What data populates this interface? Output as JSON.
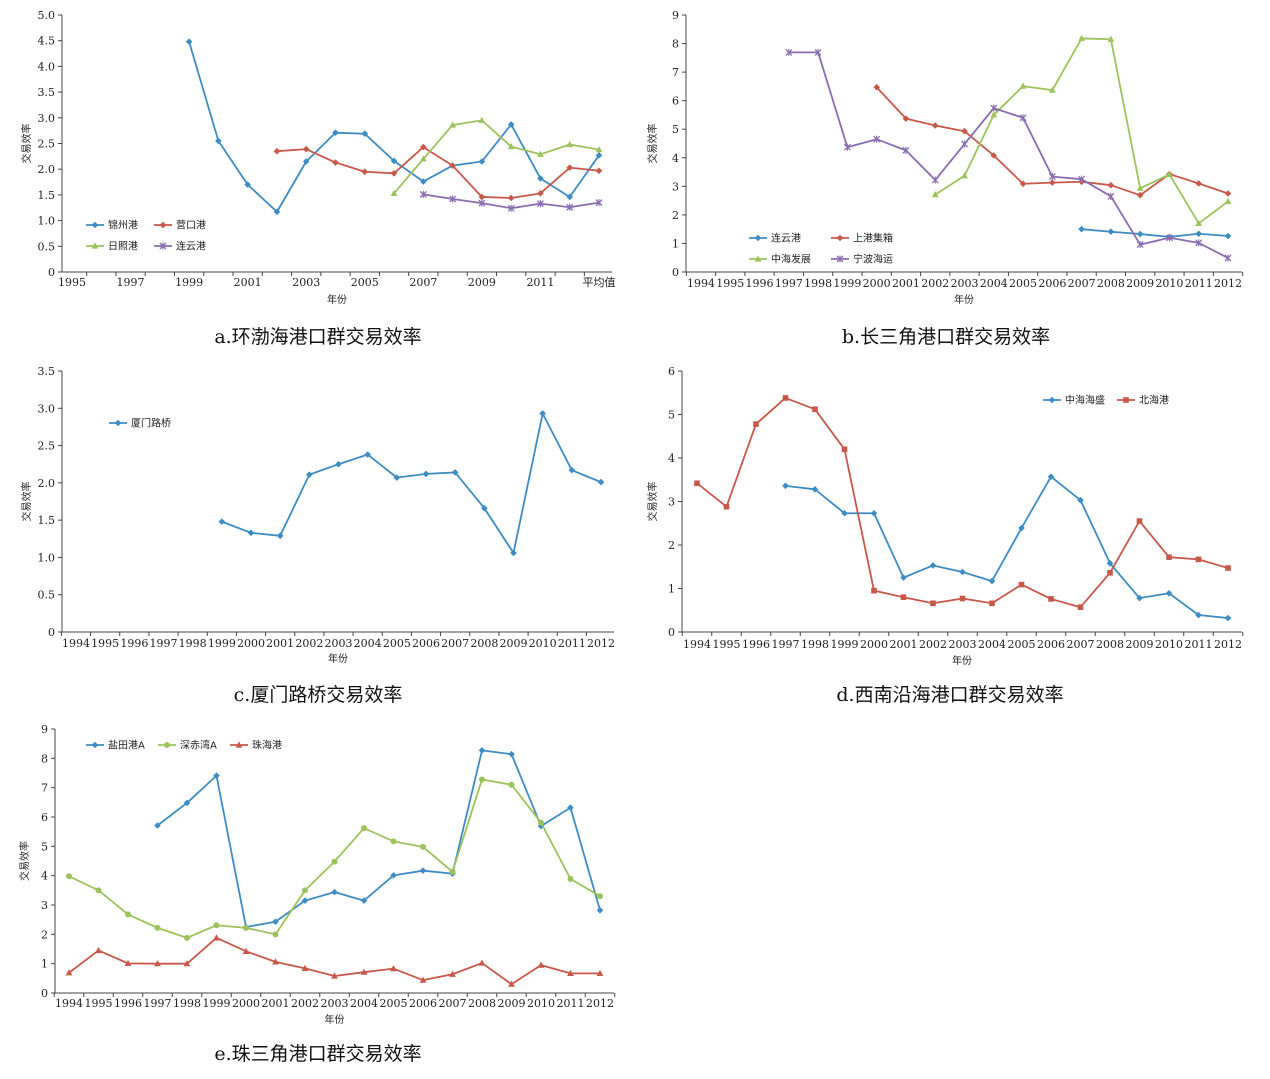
{
  "chart_data": [
    {
      "id": "a",
      "type": "line",
      "caption": "a.环渤海港口群交易效率",
      "xlabel": "年份",
      "ylabel": "交易效率",
      "ylim": [
        0,
        5
      ],
      "yticks": [
        "0",
        "0.5",
        "1.0",
        "1.5",
        "2.0",
        "2.5",
        "3.0",
        "3.5",
        "4.0",
        "4.5",
        "5.0"
      ],
      "categories": [
        "1995",
        "1996",
        "1997",
        "1998",
        "1999",
        "2000",
        "2001",
        "2002",
        "2003",
        "2004",
        "2005",
        "2006",
        "2007",
        "2008",
        "2009",
        "2010",
        "2011",
        "2012",
        "平均值"
      ],
      "xtick_labels": [
        "1995",
        "",
        "1997",
        "",
        "1999",
        "",
        "2001",
        "",
        "2003",
        "",
        "2005",
        "",
        "2007",
        "",
        "2009",
        "",
        "2011",
        "",
        "平均值"
      ],
      "legend": {
        "position": "bottom-left",
        "columns": 2
      },
      "series": [
        {
          "name": "锦州港",
          "color": "#3d8cc4",
          "marker": "diamond",
          "values": [
            null,
            null,
            null,
            null,
            4.48,
            2.55,
            1.7,
            1.17,
            2.15,
            2.71,
            2.69,
            2.16,
            1.76,
            2.07,
            2.15,
            2.87,
            1.82,
            1.46,
            2.27
          ]
        },
        {
          "name": "营口港",
          "color": "#c8584a",
          "marker": "diamond",
          "values": [
            null,
            null,
            null,
            null,
            null,
            null,
            null,
            2.35,
            2.39,
            2.13,
            1.95,
            1.92,
            2.43,
            2.07,
            1.46,
            1.44,
            1.53,
            2.03,
            1.97
          ]
        },
        {
          "name": "日照港",
          "color": "#9ec35c",
          "marker": "triangle",
          "values": [
            null,
            null,
            null,
            null,
            null,
            null,
            null,
            null,
            null,
            null,
            null,
            1.53,
            2.2,
            2.86,
            2.95,
            2.44,
            2.29,
            2.48,
            2.38
          ]
        },
        {
          "name": "连云港",
          "color": "#8a6db0",
          "marker": "x",
          "values": [
            null,
            null,
            null,
            null,
            null,
            null,
            null,
            null,
            null,
            null,
            null,
            null,
            1.51,
            1.42,
            1.34,
            1.24,
            1.33,
            1.26,
            1.35
          ]
        }
      ]
    },
    {
      "id": "b",
      "type": "line",
      "caption": "b.长三角港口群交易效率",
      "xlabel": "年份",
      "ylabel": "交易效率",
      "ylim": [
        0,
        9
      ],
      "yticks": [
        "0",
        "1",
        "2",
        "3",
        "4",
        "5",
        "6",
        "7",
        "8",
        "9"
      ],
      "categories": [
        "1994",
        "1995",
        "1996",
        "1997",
        "1998",
        "1999",
        "2000",
        "2001",
        "2002",
        "2003",
        "2004",
        "2005",
        "2006",
        "2007",
        "2008",
        "2009",
        "2010",
        "2011",
        "2012"
      ],
      "xtick_labels": [
        "1994",
        "1995",
        "1996",
        "1997",
        "1998",
        "1999",
        "2000",
        "2001",
        "2002",
        "2003",
        "2004",
        "2005",
        "2006",
        "2007",
        "2008",
        "2009",
        "2010",
        "2011",
        "2012"
      ],
      "legend": {
        "position": "bottom-left",
        "columns": 2
      },
      "series": [
        {
          "name": "连云港",
          "color": "#3d8cc4",
          "marker": "diamond",
          "values": [
            null,
            null,
            null,
            null,
            null,
            null,
            null,
            null,
            null,
            null,
            null,
            null,
            null,
            1.5,
            1.41,
            1.33,
            1.23,
            1.34,
            1.26
          ]
        },
        {
          "name": "上港集箱",
          "color": "#c8584a",
          "marker": "diamond",
          "values": [
            null,
            null,
            null,
            null,
            null,
            null,
            6.47,
            5.37,
            5.13,
            4.93,
            4.08,
            3.09,
            3.13,
            3.16,
            3.04,
            2.69,
            3.43,
            3.1,
            2.75
          ]
        },
        {
          "name": "中海发展",
          "color": "#9ec35c",
          "marker": "triangle",
          "values": [
            null,
            null,
            null,
            null,
            null,
            null,
            null,
            null,
            2.71,
            3.37,
            5.5,
            6.51,
            6.37,
            8.18,
            8.15,
            2.93,
            3.42,
            1.7,
            2.47
          ]
        },
        {
          "name": "宁波海运",
          "color": "#8a6db0",
          "marker": "x",
          "values": [
            null,
            null,
            null,
            7.69,
            7.69,
            4.37,
            4.65,
            4.26,
            3.22,
            4.48,
            5.74,
            5.4,
            3.34,
            3.25,
            2.65,
            0.96,
            1.2,
            1.02,
            0.49
          ]
        }
      ]
    },
    {
      "id": "c",
      "type": "line",
      "caption": "c.厦门路桥交易效率",
      "xlabel": "年份",
      "ylabel": "交易效率",
      "ylim": [
        0,
        3.5
      ],
      "yticks": [
        "0",
        "0.5",
        "1.0",
        "1.5",
        "2.0",
        "2.5",
        "3.0",
        "3.5"
      ],
      "categories": [
        "1994",
        "1995",
        "1996",
        "1997",
        "1998",
        "1999",
        "2000",
        "2001",
        "2002",
        "2003",
        "2004",
        "2005",
        "2006",
        "2007",
        "2008",
        "2009",
        "2010",
        "2011",
        "2012"
      ],
      "xtick_labels": [
        "1994",
        "1995",
        "1996",
        "1997",
        "1998",
        "1999",
        "2000",
        "2001",
        "2002",
        "2003",
        "2004",
        "2005",
        "2006",
        "2007",
        "2008",
        "2009",
        "2010",
        "2011",
        "2012"
      ],
      "legend": {
        "position": "top-left",
        "columns": 1
      },
      "series": [
        {
          "name": "厦门路桥",
          "color": "#3d8cc4",
          "marker": "diamond",
          "values": [
            null,
            null,
            null,
            null,
            null,
            1.48,
            1.33,
            1.29,
            2.11,
            2.25,
            2.38,
            2.07,
            2.12,
            2.14,
            1.66,
            1.06,
            2.93,
            2.17,
            2.01
          ]
        }
      ]
    },
    {
      "id": "d",
      "type": "line",
      "caption": "d.西南沿海港口群交易效率",
      "xlabel": "年份",
      "ylabel": "交易效率",
      "ylim": [
        0,
        6
      ],
      "yticks": [
        "0",
        "1",
        "2",
        "3",
        "4",
        "5",
        "6"
      ],
      "categories": [
        "1994",
        "1995",
        "1996",
        "1997",
        "1998",
        "1999",
        "2000",
        "2001",
        "2002",
        "2003",
        "2004",
        "2005",
        "2006",
        "2007",
        "2008",
        "2009",
        "2010",
        "2011",
        "2012"
      ],
      "xtick_labels": [
        "1994",
        "1995",
        "1996",
        "1997",
        "1998",
        "1999",
        "2000",
        "2001",
        "2002",
        "2003",
        "2004",
        "2005",
        "2006",
        "2007",
        "2008",
        "2009",
        "2010",
        "2011",
        "2012"
      ],
      "legend": {
        "position": "top-right",
        "columns": 2
      },
      "series": [
        {
          "name": "中海海盛",
          "color": "#3d8cc4",
          "marker": "diamond",
          "values": [
            null,
            null,
            null,
            3.36,
            3.28,
            2.73,
            2.73,
            1.25,
            1.53,
            1.38,
            1.17,
            2.39,
            3.57,
            3.03,
            1.58,
            0.78,
            0.89,
            0.39,
            0.32
          ]
        },
        {
          "name": "北海港",
          "color": "#c8584a",
          "marker": "square",
          "values": [
            3.42,
            2.88,
            4.78,
            5.38,
            5.12,
            4.2,
            0.95,
            0.8,
            0.66,
            0.77,
            0.66,
            1.09,
            0.76,
            0.57,
            1.36,
            2.55,
            1.72,
            1.67,
            1.47
          ]
        }
      ]
    },
    {
      "id": "e",
      "type": "line",
      "caption": "e.珠三角港口群交易效率",
      "xlabel": "年份",
      "ylabel": "交易效率",
      "ylim": [
        0,
        9
      ],
      "yticks": [
        "0",
        "1",
        "2",
        "3",
        "4",
        "5",
        "6",
        "7",
        "8",
        "9"
      ],
      "categories": [
        "1994",
        "1995",
        "1996",
        "1997",
        "1998",
        "1999",
        "2000",
        "2001",
        "2002",
        "2003",
        "2004",
        "2005",
        "2006",
        "2007",
        "2008",
        "2009",
        "2010",
        "2011",
        "2012"
      ],
      "xtick_labels": [
        "1994",
        "1995",
        "1996",
        "1997",
        "1998",
        "1999",
        "2000",
        "2001",
        "2002",
        "2003",
        "2004",
        "2005",
        "2006",
        "2007",
        "2008",
        "2009",
        "2010",
        "2011",
        "2012"
      ],
      "legend": {
        "position": "top-left",
        "columns": 3
      },
      "series": [
        {
          "name": "盐田港A",
          "color": "#3d8cc4",
          "marker": "diamond",
          "values": [
            null,
            null,
            null,
            5.71,
            6.48,
            7.41,
            2.25,
            2.43,
            3.15,
            3.44,
            3.15,
            4.01,
            4.17,
            4.07,
            8.27,
            8.14,
            5.69,
            6.32,
            2.82
          ]
        },
        {
          "name": "深赤湾A",
          "color": "#9ec35c",
          "marker": "circle",
          "values": [
            3.98,
            3.5,
            2.68,
            2.22,
            1.88,
            2.31,
            2.22,
            2.0,
            3.5,
            4.48,
            5.62,
            5.17,
            4.98,
            4.13,
            7.28,
            7.1,
            5.81,
            3.89,
            3.3
          ]
        },
        {
          "name": "珠海港",
          "color": "#c8584a",
          "marker": "triangle",
          "values": [
            0.69,
            1.45,
            1.01,
            1.0,
            1.0,
            1.88,
            1.42,
            1.06,
            0.84,
            0.58,
            0.71,
            0.83,
            0.44,
            0.64,
            1.02,
            0.3,
            0.95,
            0.67,
            0.67
          ]
        }
      ]
    }
  ]
}
